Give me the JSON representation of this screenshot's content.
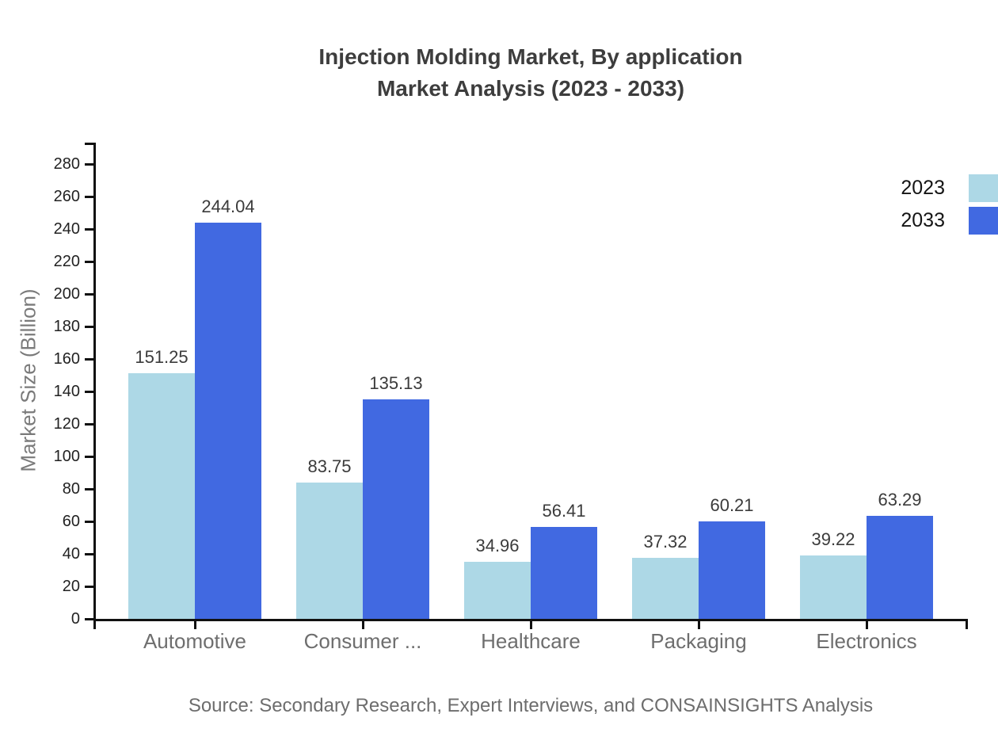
{
  "title": {
    "line1": "Injection Molding Market, By application",
    "line2": "Market Analysis (2023 - 2033)"
  },
  "source_note": "Source: Secondary Research, Expert Interviews, and CONSAINSIGHTS Analysis",
  "legend": {
    "items": [
      {
        "label": "2023",
        "color": "#ADD8E6"
      },
      {
        "label": "2033",
        "color": "#4169E1"
      }
    ]
  },
  "chart_data": {
    "type": "bar",
    "title": "Injection Molding Market, By application Market Analysis (2023 - 2033)",
    "categories": [
      "Automotive",
      "Consumer ...",
      "Healthcare",
      "Packaging",
      "Electronics"
    ],
    "series": [
      {
        "name": "2023",
        "color": "#ADD8E6",
        "values": [
          151.25,
          83.75,
          34.96,
          37.32,
          39.22
        ]
      },
      {
        "name": "2033",
        "color": "#4169E1",
        "values": [
          244.04,
          135.13,
          56.41,
          60.21,
          63.29
        ]
      }
    ],
    "xlabel": "",
    "ylabel": "Market Size (Billion)",
    "ylim": [
      0,
      293
    ],
    "yticks": [
      0,
      20,
      40,
      60,
      80,
      100,
      120,
      140,
      160,
      180,
      200,
      220,
      240,
      260,
      280
    ],
    "grid": false,
    "legend_position": "top-right",
    "bar_value_labels": true,
    "value_label_decimals": 2
  },
  "colors": {
    "axis": "#111111",
    "title_text": "#3d3d3d",
    "category_label": "#6e6e6e",
    "value_label": "#3b3b3b",
    "tick_label": "#222222",
    "axis_title": "#7a7a7a",
    "source_text": "#6d6d6d"
  }
}
